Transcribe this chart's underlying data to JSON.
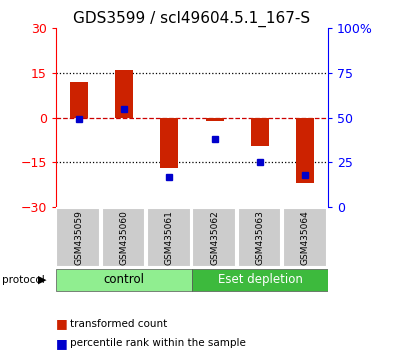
{
  "title": "GDS3599 / scl49604.5.1_167-S",
  "samples": [
    "GSM435059",
    "GSM435060",
    "GSM435061",
    "GSM435062",
    "GSM435063",
    "GSM435064"
  ],
  "red_bars": [
    12.0,
    16.0,
    -17.0,
    -1.0,
    -9.5,
    -22.0
  ],
  "blue_dots_pct": [
    49,
    55,
    17,
    38,
    25,
    18
  ],
  "ylim_left": [
    -30,
    30
  ],
  "ylim_right": [
    0,
    100
  ],
  "yticks_left": [
    -30,
    -15,
    0,
    15,
    30
  ],
  "yticks_right": [
    0,
    25,
    50,
    75,
    100
  ],
  "ytick_labels_right": [
    "0",
    "25",
    "50",
    "75",
    "100%"
  ],
  "control_color": "#90ee90",
  "eset_color": "#3dba3d",
  "control_label": "control",
  "eset_label": "Eset depletion",
  "protocol_label": "protocol",
  "legend_red": "transformed count",
  "legend_blue": "percentile rank within the sample",
  "bar_color": "#cc2200",
  "dot_color": "#0000cc",
  "zero_line_color": "#cc0000",
  "title_fontsize": 11,
  "tick_fontsize": 9,
  "bar_width": 0.4
}
